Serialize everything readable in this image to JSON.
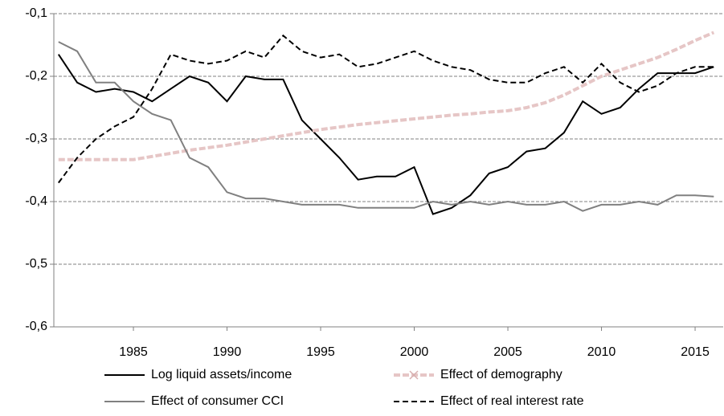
{
  "chart_data": {
    "type": "line",
    "x": [
      1981,
      1982,
      1983,
      1984,
      1985,
      1986,
      1987,
      1988,
      1989,
      1990,
      1991,
      1992,
      1993,
      1994,
      1995,
      1996,
      1997,
      1998,
      1999,
      2000,
      2001,
      2002,
      2003,
      2004,
      2005,
      2006,
      2007,
      2008,
      2009,
      2010,
      2011,
      2012,
      2013,
      2014,
      2015,
      2016
    ],
    "xlim": [
      1980.75,
      2016.5
    ],
    "xticks": [
      1985,
      1990,
      1995,
      2000,
      2005,
      2010,
      2015
    ],
    "ylim": [
      -0.6,
      -0.1
    ],
    "yticks": [
      {
        "value": -0.6,
        "label": "-0,6"
      },
      {
        "value": -0.5,
        "label": "-0,5"
      },
      {
        "value": -0.4,
        "label": "-0,4"
      },
      {
        "value": -0.3,
        "label": "-0,3"
      },
      {
        "value": -0.2,
        "label": "-0,2"
      },
      {
        "value": -0.1,
        "label": "-0,1"
      }
    ],
    "grid": true,
    "legend": "bottom",
    "series": [
      {
        "name": "Log liquid assets/income",
        "color": "#000000",
        "style": "solid",
        "values": [
          -0.165,
          -0.21,
          -0.225,
          -0.22,
          -0.225,
          -0.24,
          -0.22,
          -0.2,
          -0.21,
          -0.24,
          -0.2,
          -0.205,
          -0.205,
          -0.27,
          -0.3,
          -0.33,
          -0.365,
          -0.36,
          -0.36,
          -0.345,
          -0.42,
          -0.41,
          -0.39,
          -0.355,
          -0.345,
          -0.32,
          -0.315,
          -0.29,
          -0.24,
          -0.26,
          -0.25,
          -0.22,
          -0.195,
          -0.195,
          -0.195,
          -0.185
        ]
      },
      {
        "name": "Effect of demography",
        "color": "#e6c6c6",
        "style": "dashed-x",
        "values": [
          -0.333,
          -0.333,
          -0.333,
          -0.333,
          -0.333,
          -0.328,
          -0.323,
          -0.318,
          -0.314,
          -0.31,
          -0.305,
          -0.3,
          -0.295,
          -0.29,
          -0.285,
          -0.281,
          -0.277,
          -0.274,
          -0.271,
          -0.268,
          -0.265,
          -0.262,
          -0.26,
          -0.257,
          -0.255,
          -0.25,
          -0.242,
          -0.23,
          -0.215,
          -0.2,
          -0.19,
          -0.18,
          -0.17,
          -0.157,
          -0.143,
          -0.13
        ]
      },
      {
        "name": "Effect of consumer CCI",
        "color": "#808080",
        "style": "solid",
        "values": [
          -0.145,
          -0.16,
          -0.21,
          -0.21,
          -0.24,
          -0.26,
          -0.27,
          -0.33,
          -0.345,
          -0.385,
          -0.395,
          -0.395,
          -0.4,
          -0.405,
          -0.405,
          -0.405,
          -0.41,
          -0.41,
          -0.41,
          -0.41,
          -0.4,
          -0.405,
          -0.4,
          -0.405,
          -0.4,
          -0.405,
          -0.405,
          -0.4,
          -0.415,
          -0.405,
          -0.405,
          -0.4,
          -0.405,
          -0.39,
          -0.39,
          -0.392
        ]
      },
      {
        "name": "Effect of real interest rate",
        "color": "#000000",
        "style": "dashed",
        "values": [
          -0.37,
          -0.33,
          -0.3,
          -0.28,
          -0.265,
          -0.22,
          -0.165,
          -0.175,
          -0.18,
          -0.175,
          -0.16,
          -0.17,
          -0.135,
          -0.16,
          -0.17,
          -0.165,
          -0.185,
          -0.18,
          -0.17,
          -0.16,
          -0.175,
          -0.185,
          -0.19,
          -0.205,
          -0.21,
          -0.21,
          -0.195,
          -0.185,
          -0.21,
          -0.18,
          -0.21,
          -0.225,
          -0.215,
          -0.195,
          -0.185,
          -0.185
        ]
      }
    ]
  }
}
